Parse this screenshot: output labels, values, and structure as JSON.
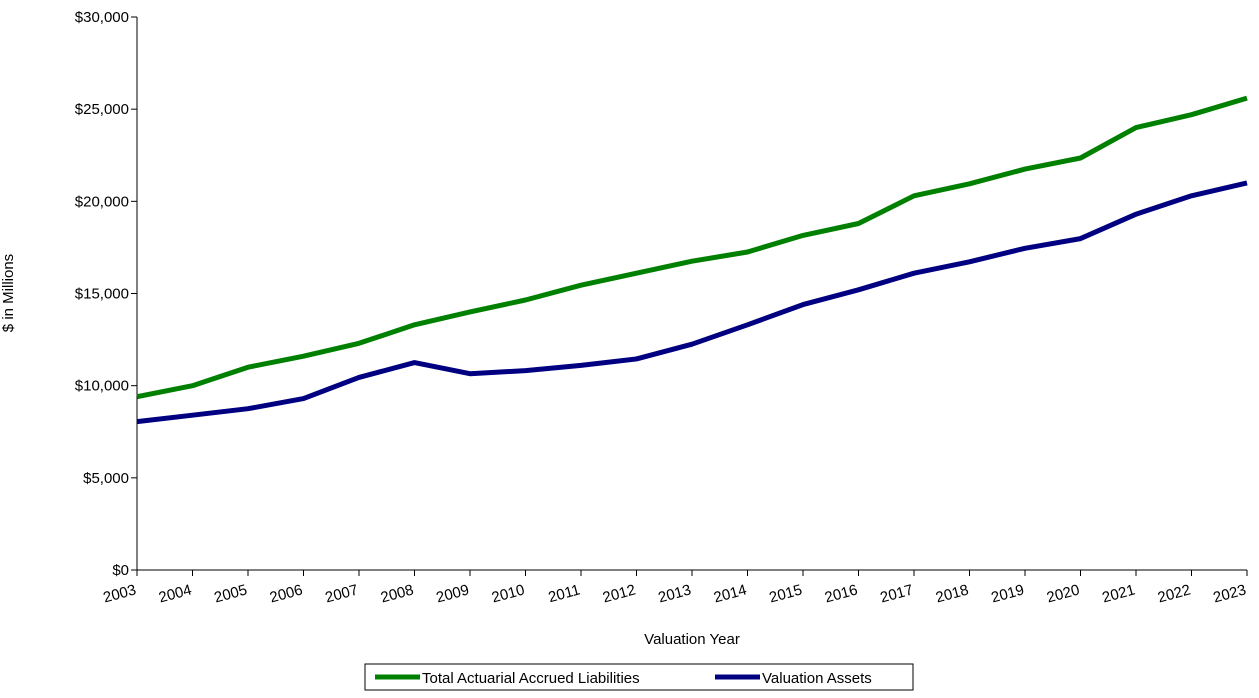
{
  "chart_data": {
    "type": "line",
    "title": "",
    "xlabel": "Valuation Year",
    "ylabel": "$ in Millions",
    "categories": [
      "2003",
      "2004",
      "2005",
      "2006",
      "2007",
      "2008",
      "2009",
      "2010",
      "2011",
      "2012",
      "2013",
      "2014",
      "2015",
      "2016",
      "2017",
      "2018",
      "2019",
      "2020",
      "2021",
      "2022",
      "2023"
    ],
    "ylim": [
      0,
      30000
    ],
    "y_ticks": [
      0,
      5000,
      10000,
      15000,
      20000,
      25000,
      30000
    ],
    "y_tick_labels": [
      "$0",
      "$5,000",
      "$10,000",
      "$15,000",
      "$20,000",
      "$25,000",
      "$30,000"
    ],
    "grid": false,
    "legend_position": "bottom",
    "series": [
      {
        "name": "Total Actuarial Accrued Liabilities",
        "color": "#008000",
        "values": [
          9400,
          10000,
          11000,
          11600,
          12300,
          13300,
          14000,
          14650,
          15450,
          16100,
          16750,
          17250,
          18150,
          18800,
          20300,
          20950,
          21750,
          22350,
          24000,
          24700,
          25600
        ]
      },
      {
        "name": "Valuation Assets",
        "color": "#000080",
        "values": [
          8050,
          8400,
          8750,
          9300,
          10450,
          11250,
          10650,
          10820,
          11100,
          11450,
          12250,
          13300,
          14400,
          15200,
          16100,
          16720,
          17450,
          17980,
          19300,
          20300,
          21000
        ]
      }
    ]
  }
}
